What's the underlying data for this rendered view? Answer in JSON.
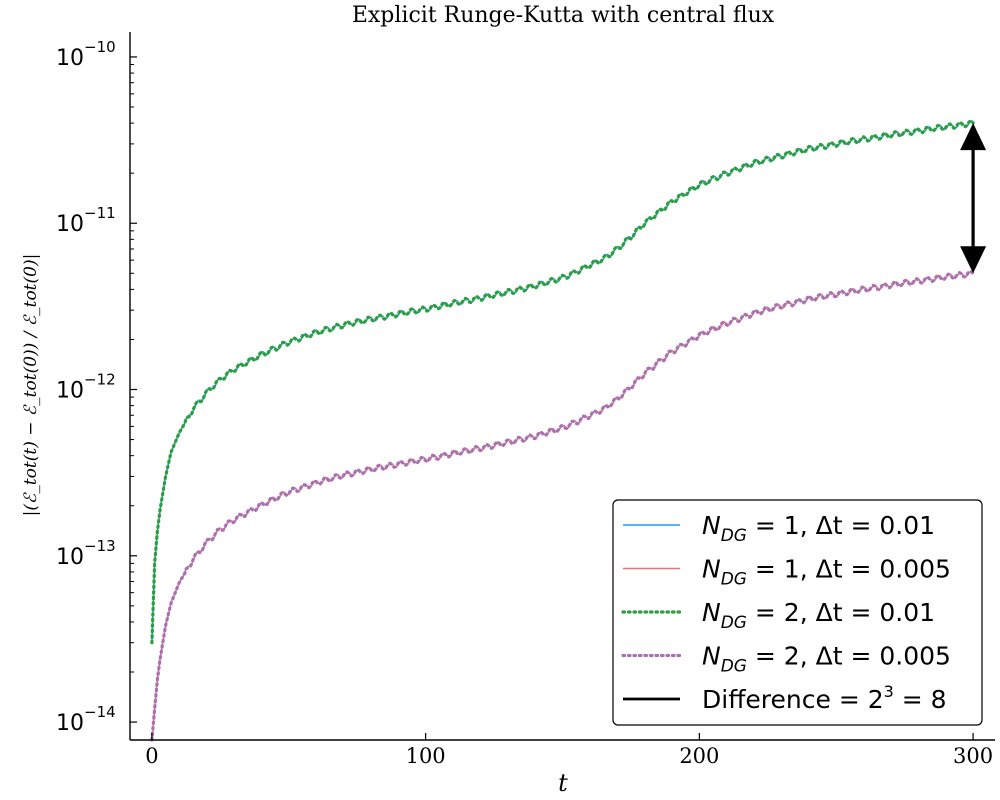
{
  "chart_data": {
    "type": "line",
    "title": "Explicit Runge-Kutta with central flux",
    "xlabel": "t",
    "ylabel": "|(ℰ_tot(t) − ℰ_tot(0)) / ℰ_tot(0)|",
    "xlim": [
      -8,
      308
    ],
    "ylim": [
      7.8e-15,
      1.3e-10
    ],
    "yscale": "log",
    "xticks": [
      0,
      100,
      200,
      300
    ],
    "xtick_labels": [
      "0",
      "100",
      "200",
      "300"
    ],
    "yticks": [
      1e-14,
      1e-13,
      1e-12,
      1e-11,
      1e-10
    ],
    "ytick_labels": [
      {
        "base": "10",
        "exp": "−14"
      },
      {
        "base": "10",
        "exp": "−13"
      },
      {
        "base": "10",
        "exp": "−12"
      },
      {
        "base": "10",
        "exp": "−11"
      },
      {
        "base": "10",
        "exp": "−10"
      }
    ],
    "grid": false,
    "legend_position": "bottom-right",
    "x": [
      0,
      1,
      2,
      3,
      5,
      7,
      10,
      15,
      20,
      25,
      30,
      40,
      50,
      60,
      70,
      80,
      90,
      100,
      110,
      120,
      130,
      140,
      150,
      155,
      160,
      165,
      170,
      175,
      180,
      190,
      200,
      210,
      220,
      230,
      240,
      250,
      260,
      270,
      280,
      290,
      300
    ],
    "series": [
      {
        "name": "N_DG = 1, Δt = 0.01",
        "legend_main": "N",
        "legend_sub": "DG",
        "legend_rest": " = 1, Δt = 0.01",
        "color": "#1f9fe6",
        "style": "solid",
        "values": [
          3e-14,
          9e-14,
          1.4e-13,
          1.9e-13,
          3e-13,
          4.2e-13,
          5.5e-13,
          7.6e-13,
          9.6e-13,
          1.15e-12,
          1.32e-12,
          1.62e-12,
          1.93e-12,
          2.2e-12,
          2.45e-12,
          2.65e-12,
          2.85e-12,
          3.05e-12,
          3.3e-12,
          3.55e-12,
          3.85e-12,
          4.2e-12,
          4.7e-12,
          5.1e-12,
          5.6e-12,
          6.1e-12,
          7e-12,
          8.3e-12,
          1e-11,
          1.35e-11,
          1.7e-11,
          2e-11,
          2.3e-11,
          2.55e-11,
          2.8e-11,
          3e-11,
          3.2e-11,
          3.4e-11,
          3.6e-11,
          3.8e-11,
          4e-11
        ]
      },
      {
        "name": "N_DG = 1, Δt = 0.005",
        "legend_main": "N",
        "legend_sub": "DG",
        "legend_rest": " = 1, Δt = 0.005",
        "color": "#e87474",
        "style": "solid",
        "values": [
          7.8e-15,
          1.2e-14,
          1.8e-14,
          2.4e-14,
          3.8e-14,
          5.2e-14,
          6.9e-14,
          9.5e-14,
          1.2e-13,
          1.44e-13,
          1.65e-13,
          2.02e-13,
          2.42e-13,
          2.75e-13,
          3.06e-13,
          3.31e-13,
          3.56e-13,
          3.81e-13,
          4.12e-13,
          4.44e-13,
          4.81e-13,
          5.25e-13,
          5.88e-13,
          6.38e-13,
          7e-13,
          7.62e-13,
          8.75e-13,
          1.04e-12,
          1.25e-12,
          1.69e-12,
          2.12e-12,
          2.5e-12,
          2.88e-12,
          3.19e-12,
          3.5e-12,
          3.75e-12,
          4e-12,
          4.25e-12,
          4.5e-12,
          4.75e-12,
          5e-12
        ]
      },
      {
        "name": "N_DG = 2, Δt = 0.01",
        "legend_main": "N",
        "legend_sub": "DG",
        "legend_rest": " = 2, Δt = 0.01",
        "color": "#2e9e3e",
        "style": "dotted",
        "values": [
          3e-14,
          9e-14,
          1.4e-13,
          1.9e-13,
          3e-13,
          4.2e-13,
          5.5e-13,
          7.6e-13,
          9.6e-13,
          1.15e-12,
          1.32e-12,
          1.62e-12,
          1.93e-12,
          2.2e-12,
          2.45e-12,
          2.65e-12,
          2.85e-12,
          3.05e-12,
          3.3e-12,
          3.55e-12,
          3.85e-12,
          4.2e-12,
          4.7e-12,
          5.1e-12,
          5.6e-12,
          6.1e-12,
          7e-12,
          8.3e-12,
          1e-11,
          1.35e-11,
          1.7e-11,
          2e-11,
          2.3e-11,
          2.55e-11,
          2.8e-11,
          3e-11,
          3.2e-11,
          3.4e-11,
          3.6e-11,
          3.8e-11,
          4e-11
        ]
      },
      {
        "name": "N_DG = 2, Δt = 0.005",
        "legend_main": "N",
        "legend_sub": "DG",
        "legend_rest": " = 2, Δt = 0.005",
        "color": "#a872b4",
        "style": "dotted",
        "values": [
          7.8e-15,
          1.2e-14,
          1.8e-14,
          2.4e-14,
          3.8e-14,
          5.2e-14,
          6.9e-14,
          9.5e-14,
          1.2e-13,
          1.44e-13,
          1.65e-13,
          2.02e-13,
          2.42e-13,
          2.75e-13,
          3.06e-13,
          3.31e-13,
          3.56e-13,
          3.81e-13,
          4.12e-13,
          4.44e-13,
          4.81e-13,
          5.25e-13,
          5.88e-13,
          6.38e-13,
          7e-13,
          7.62e-13,
          8.75e-13,
          1.04e-12,
          1.25e-12,
          1.69e-12,
          2.12e-12,
          2.5e-12,
          2.88e-12,
          3.19e-12,
          3.5e-12,
          3.75e-12,
          4e-12,
          4.25e-12,
          4.5e-12,
          4.75e-12,
          5e-12
        ]
      }
    ],
    "annotation": {
      "name": "Difference = 2^3 = 8",
      "legend_prefix": "Difference  = 2",
      "legend_exp": "3",
      "legend_suffix": " = 8",
      "color": "#000000",
      "x": 300,
      "y_from": 5e-12,
      "y_to": 4e-11
    }
  }
}
